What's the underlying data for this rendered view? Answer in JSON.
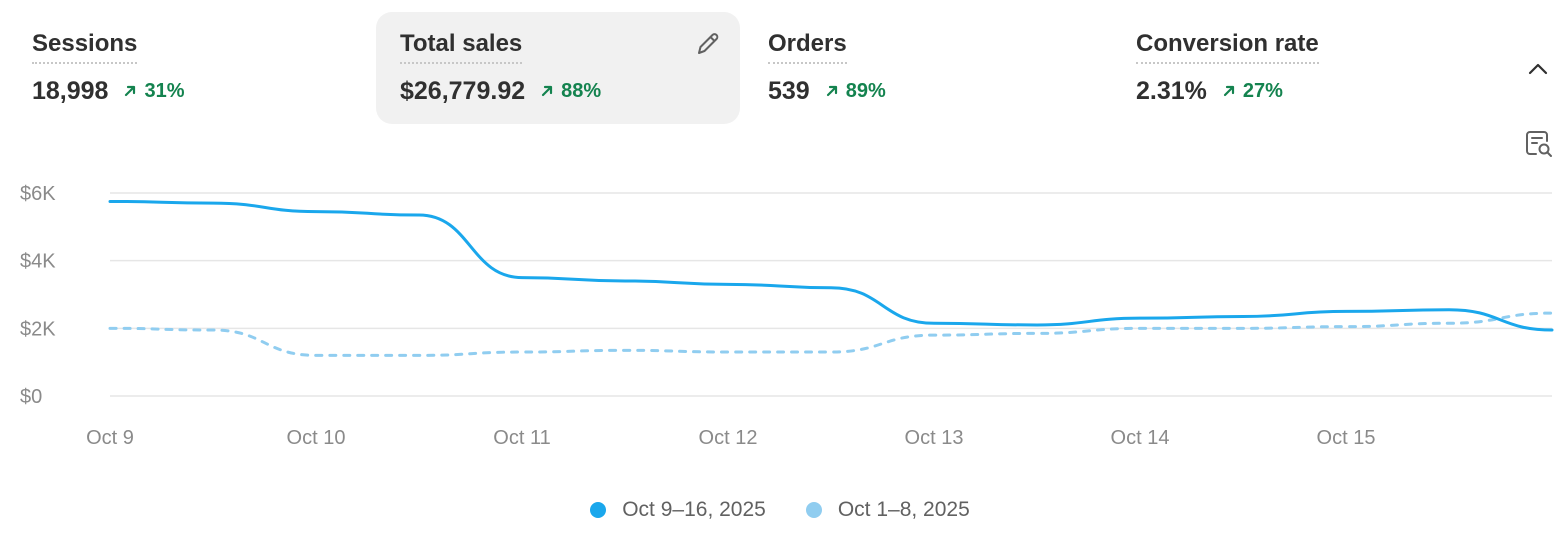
{
  "metrics": [
    {
      "title": "Sessions",
      "value": "18,998",
      "change": "31%"
    },
    {
      "title": "Total sales",
      "value": "$26,779.92",
      "change": "88%",
      "active": true
    },
    {
      "title": "Orders",
      "value": "539",
      "change": "89%"
    },
    {
      "title": "Conversion rate",
      "value": "2.31%",
      "change": "27%"
    }
  ],
  "icons": {
    "edit": "pencil-icon",
    "change": "trend-up-arrow-icon",
    "collapse": "chevron-up-icon",
    "explore": "report-search-icon"
  },
  "colors": {
    "current": "#1aa7ec",
    "previous": "#90cdf0",
    "positive": "#14834f",
    "active_bg": "#f1f1f1"
  },
  "chart_data": {
    "type": "line",
    "ylim": [
      0,
      6000
    ],
    "yticks": [
      0,
      2000,
      4000,
      6000
    ],
    "ytick_labels": [
      "$0",
      "$2K",
      "$4K",
      "$6K"
    ],
    "xtick_labels": [
      "Oct 9",
      "Oct 10",
      "Oct 11",
      "Oct 12",
      "Oct 13",
      "Oct 14",
      "Oct 15"
    ],
    "grid": true,
    "legend_position": "bottom-center",
    "series": [
      {
        "name": "Oct 9–16, 2025",
        "style": "solid",
        "values": [
          5750,
          5700,
          5450,
          5350,
          3500,
          3400,
          3300,
          3200,
          2150,
          2100,
          2300,
          2350,
          2500,
          2550,
          1950
        ]
      },
      {
        "name": "Oct 1–8, 2025",
        "style": "dashed",
        "values": [
          2000,
          1950,
          1200,
          1200,
          1300,
          1350,
          1300,
          1300,
          1800,
          1850,
          2000,
          2000,
          2050,
          2150,
          2450
        ]
      }
    ]
  }
}
